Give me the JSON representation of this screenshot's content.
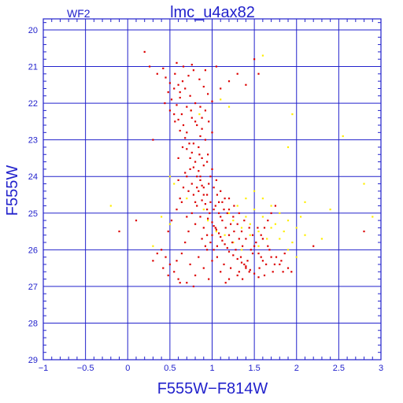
{
  "chart_data": {
    "type": "scatter",
    "title": "lmc_u4ax82",
    "corner_label": "WF2",
    "xlabel": "F555W−F814W",
    "ylabel": "F555W",
    "xlim": [
      -1,
      3
    ],
    "ylim": [
      29,
      19.7
    ],
    "y_inverted": true,
    "grid": true,
    "x_ticks": [
      -1,
      -0.5,
      0,
      0.5,
      1,
      1.5,
      2,
      2.5,
      3
    ],
    "x_tick_labels": [
      "−1",
      "−0.5",
      "0",
      "0.5",
      "1",
      "1.5",
      "2",
      "2.5",
      "3"
    ],
    "y_ticks": [
      20,
      21,
      22,
      23,
      24,
      25,
      26,
      27,
      28,
      29
    ],
    "y_tick_labels": [
      "20",
      "21",
      "22",
      "23",
      "24",
      "25",
      "26",
      "27",
      "28",
      "29"
    ],
    "colors": {
      "frame": "#2222cc",
      "grid": "#2222cc",
      "red": "#dd0000",
      "yellow": "#ffee00"
    },
    "series": [
      {
        "color": "#dd0000",
        "points": [
          [
            0.2,
            20.6
          ],
          [
            0.26,
            21.0
          ],
          [
            0.35,
            21.2
          ],
          [
            0.42,
            21.05
          ],
          [
            0.45,
            21.3
          ],
          [
            0.5,
            21.45
          ],
          [
            0.55,
            21.6
          ],
          [
            0.6,
            21.5
          ],
          [
            0.48,
            21.7
          ],
          [
            0.52,
            21.9
          ],
          [
            0.58,
            22.05
          ],
          [
            0.62,
            21.85
          ],
          [
            0.55,
            22.3
          ],
          [
            0.6,
            22.45
          ],
          [
            0.66,
            22.6
          ],
          [
            0.62,
            22.75
          ],
          [
            0.7,
            22.8
          ],
          [
            0.68,
            22.95
          ],
          [
            0.73,
            23.1
          ],
          [
            0.7,
            23.25
          ],
          [
            0.76,
            23.35
          ],
          [
            0.74,
            23.5
          ],
          [
            0.8,
            23.6
          ],
          [
            0.78,
            23.75
          ],
          [
            0.84,
            23.85
          ],
          [
            0.82,
            24.0
          ],
          [
            0.86,
            24.1
          ],
          [
            0.88,
            24.25
          ],
          [
            0.84,
            24.4
          ],
          [
            0.9,
            24.5
          ],
          [
            0.88,
            24.65
          ],
          [
            0.92,
            24.75
          ],
          [
            0.94,
            24.9
          ],
          [
            0.97,
            25.0
          ],
          [
            0.95,
            25.15
          ],
          [
            1.0,
            25.25
          ],
          [
            1.02,
            25.35
          ],
          [
            1.05,
            25.45
          ],
          [
            1.08,
            25.55
          ],
          [
            1.1,
            25.65
          ],
          [
            1.12,
            25.75
          ],
          [
            1.15,
            25.85
          ],
          [
            1.18,
            25.95
          ],
          [
            1.2,
            26.05
          ],
          [
            1.25,
            26.15
          ],
          [
            1.3,
            26.25
          ],
          [
            1.35,
            26.35
          ],
          [
            1.4,
            26.45
          ],
          [
            1.45,
            26.55
          ],
          [
            1.5,
            26.65
          ],
          [
            1.55,
            26.75
          ],
          [
            0.65,
            21.4
          ],
          [
            0.72,
            21.25
          ],
          [
            0.78,
            21.1
          ],
          [
            0.85,
            21.35
          ],
          [
            0.9,
            21.55
          ],
          [
            0.95,
            21.75
          ],
          [
            1.0,
            21.95
          ],
          [
            0.75,
            22.2
          ],
          [
            0.8,
            22.5
          ],
          [
            0.88,
            22.7
          ],
          [
            0.92,
            23.0
          ],
          [
            0.95,
            23.4
          ],
          [
            1.0,
            23.8
          ],
          [
            1.05,
            24.1
          ],
          [
            1.1,
            24.4
          ],
          [
            1.15,
            24.6
          ],
          [
            1.2,
            24.9
          ],
          [
            1.25,
            25.1
          ],
          [
            1.3,
            25.3
          ],
          [
            1.35,
            25.5
          ],
          [
            1.4,
            25.7
          ],
          [
            1.5,
            25.9
          ],
          [
            1.55,
            26.1
          ],
          [
            1.6,
            26.3
          ],
          [
            1.7,
            26.2
          ],
          [
            1.8,
            26.4
          ],
          [
            1.9,
            26.5
          ],
          [
            0.4,
            26.0
          ],
          [
            0.45,
            26.2
          ],
          [
            0.5,
            26.4
          ],
          [
            0.55,
            26.6
          ],
          [
            0.6,
            26.8
          ],
          [
            0.7,
            26.9
          ],
          [
            0.8,
            26.7
          ],
          [
            0.9,
            26.5
          ],
          [
            1.0,
            26.3
          ],
          [
            1.1,
            26.6
          ],
          [
            1.2,
            26.8
          ],
          [
            1.3,
            26.7
          ],
          [
            1.4,
            26.5
          ],
          [
            0.35,
            26.1
          ],
          [
            0.48,
            25.5
          ],
          [
            0.52,
            25.2
          ],
          [
            0.58,
            24.9
          ],
          [
            0.62,
            24.6
          ],
          [
            0.66,
            24.3
          ],
          [
            0.7,
            24.0
          ],
          [
            0.74,
            23.8
          ],
          [
            0.76,
            24.2
          ],
          [
            0.78,
            24.5
          ],
          [
            0.82,
            24.8
          ],
          [
            0.86,
            25.1
          ],
          [
            0.9,
            25.4
          ],
          [
            0.94,
            25.6
          ],
          [
            0.98,
            25.8
          ],
          [
            1.02,
            26.0
          ],
          [
            1.06,
            26.2
          ],
          [
            1.14,
            26.4
          ],
          [
            1.22,
            26.5
          ],
          [
            1.32,
            26.6
          ],
          [
            1.42,
            26.3
          ],
          [
            1.48,
            26.1
          ],
          [
            1.52,
            25.8
          ],
          [
            1.58,
            25.6
          ],
          [
            1.62,
            25.4
          ],
          [
            1.66,
            25.2
          ],
          [
            1.7,
            25.0
          ],
          [
            1.75,
            24.8
          ],
          [
            -0.1,
            25.5
          ],
          [
            0.1,
            25.2
          ],
          [
            2.2,
            25.9
          ],
          [
            2.8,
            25.5
          ],
          [
            1.4,
            21.5
          ],
          [
            1.1,
            21.6
          ],
          [
            0.3,
            23.0
          ],
          [
            1.55,
            21.2
          ],
          [
            0.92,
            22.2
          ],
          [
            0.6,
            23.5
          ],
          [
            0.65,
            23.2
          ],
          [
            0.68,
            23.9
          ],
          [
            0.72,
            24.4
          ],
          [
            0.8,
            24.7
          ],
          [
            0.85,
            23.4
          ],
          [
            0.9,
            23.7
          ],
          [
            0.96,
            24.2
          ],
          [
            1.04,
            24.8
          ],
          [
            1.08,
            25.0
          ],
          [
            1.12,
            25.2
          ],
          [
            1.16,
            25.4
          ],
          [
            1.2,
            25.6
          ],
          [
            1.24,
            25.8
          ],
          [
            1.28,
            26.0
          ],
          [
            1.34,
            26.2
          ],
          [
            1.38,
            26.4
          ],
          [
            1.44,
            26.6
          ],
          [
            1.56,
            26.5
          ],
          [
            1.64,
            26.4
          ],
          [
            1.72,
            26.6
          ],
          [
            1.82,
            26.3
          ],
          [
            1.94,
            26.6
          ],
          [
            0.42,
            26.5
          ],
          [
            0.58,
            26.3
          ],
          [
            0.64,
            26.1
          ],
          [
            0.74,
            26.4
          ],
          [
            0.84,
            26.2
          ],
          [
            0.94,
            26.0
          ],
          [
            1.06,
            25.9
          ],
          [
            0.44,
            22.0
          ],
          [
            0.5,
            22.2
          ],
          [
            0.56,
            22.5
          ],
          [
            0.64,
            22.3
          ],
          [
            0.7,
            22.1
          ],
          [
            0.76,
            22.4
          ],
          [
            0.82,
            22.6
          ],
          [
            0.86,
            22.9
          ],
          [
            0.78,
            23.1
          ],
          [
            0.84,
            23.2
          ],
          [
            0.88,
            23.5
          ],
          [
            0.94,
            23.6
          ],
          [
            0.98,
            24.0
          ],
          [
            1.02,
            24.3
          ],
          [
            1.06,
            24.5
          ],
          [
            1.12,
            24.7
          ],
          [
            1.18,
            25.0
          ],
          [
            1.22,
            25.3
          ],
          [
            1.26,
            25.5
          ],
          [
            1.32,
            25.7
          ],
          [
            1.36,
            25.9
          ],
          [
            1.46,
            26.0
          ],
          [
            1.58,
            26.2
          ],
          [
            1.68,
            26.0
          ],
          [
            1.76,
            26.2
          ],
          [
            1.86,
            26.1
          ],
          [
            0.56,
            21.2
          ],
          [
            0.62,
            21.7
          ],
          [
            0.68,
            21.6
          ],
          [
            0.74,
            21.8
          ],
          [
            0.8,
            22.0
          ],
          [
            0.86,
            22.1
          ],
          [
            0.88,
            22.4
          ],
          [
            0.96,
            22.5
          ],
          [
            1.0,
            22.8
          ],
          [
            0.58,
            20.9
          ],
          [
            0.66,
            21.0
          ],
          [
            0.76,
            20.95
          ],
          [
            0.92,
            21.1
          ],
          [
            1.05,
            21.0
          ],
          [
            1.2,
            21.4
          ],
          [
            1.3,
            21.2
          ],
          [
            1.5,
            20.8
          ],
          [
            0.3,
            26.3
          ],
          [
            0.48,
            26.7
          ],
          [
            0.62,
            26.9
          ],
          [
            0.78,
            27.0
          ],
          [
            0.96,
            26.8
          ],
          [
            1.16,
            26.9
          ],
          [
            1.36,
            26.8
          ],
          [
            1.62,
            26.7
          ],
          [
            0.68,
            25.8
          ],
          [
            0.72,
            25.5
          ],
          [
            0.8,
            25.3
          ],
          [
            0.88,
            25.7
          ],
          [
            0.92,
            25.9
          ],
          [
            1.0,
            25.6
          ],
          [
            1.04,
            25.4
          ],
          [
            1.1,
            25.1
          ],
          [
            1.14,
            24.9
          ],
          [
            1.2,
            24.6
          ],
          [
            1.26,
            24.8
          ],
          [
            1.32,
            25.0
          ],
          [
            1.38,
            25.2
          ],
          [
            1.44,
            25.4
          ],
          [
            1.48,
            25.6
          ],
          [
            1.54,
            25.4
          ],
          [
            1.6,
            25.7
          ],
          [
            1.66,
            25.9
          ],
          [
            1.74,
            26.4
          ],
          [
            1.84,
            26.6
          ],
          [
            0.6,
            24.1
          ],
          [
            0.64,
            24.7
          ],
          [
            0.7,
            25.1
          ],
          [
            0.76,
            25.0
          ],
          [
            0.82,
            24.3
          ],
          [
            0.86,
            24.0
          ],
          [
            0.9,
            24.3
          ],
          [
            0.94,
            24.5
          ],
          [
            0.98,
            24.7
          ],
          [
            1.02,
            24.9
          ],
          [
            1.08,
            24.7
          ]
        ]
      },
      {
        "color": "#ffee00",
        "points": [
          [
            1.6,
            20.7
          ],
          [
            2.55,
            22.9
          ],
          [
            2.8,
            24.2
          ],
          [
            1.9,
            23.2
          ],
          [
            1.5,
            24.4
          ],
          [
            1.6,
            24.6
          ],
          [
            1.7,
            24.8
          ],
          [
            1.8,
            25.0
          ],
          [
            1.9,
            25.2
          ],
          [
            2.0,
            25.4
          ],
          [
            2.1,
            25.6
          ],
          [
            1.4,
            25.1
          ],
          [
            1.45,
            25.3
          ],
          [
            1.55,
            25.5
          ],
          [
            1.65,
            25.7
          ],
          [
            1.75,
            25.3
          ],
          [
            1.85,
            25.5
          ],
          [
            1.95,
            25.8
          ],
          [
            2.05,
            25.1
          ],
          [
            0.5,
            24.0
          ],
          [
            0.55,
            24.2
          ],
          [
            0.4,
            25.1
          ],
          [
            0.5,
            25.3
          ],
          [
            0.3,
            25.9
          ],
          [
            -0.2,
            24.8
          ],
          [
            1.35,
            25.4
          ],
          [
            1.25,
            25.2
          ],
          [
            1.3,
            24.8
          ],
          [
            1.2,
            25.0
          ],
          [
            1.4,
            24.6
          ],
          [
            1.5,
            24.9
          ],
          [
            1.6,
            25.1
          ],
          [
            1.7,
            25.4
          ],
          [
            1.8,
            25.7
          ],
          [
            1.9,
            26.0
          ],
          [
            2.0,
            26.2
          ],
          [
            2.3,
            25.7
          ],
          [
            2.4,
            24.9
          ],
          [
            2.9,
            25.1
          ],
          [
            2.1,
            24.7
          ],
          [
            1.55,
            25.9
          ],
          [
            1.45,
            25.6
          ],
          [
            1.35,
            26.0
          ],
          [
            1.25,
            25.8
          ],
          [
            1.15,
            25.6
          ],
          [
            1.05,
            25.5
          ],
          [
            0.95,
            25.2
          ],
          [
            0.9,
            24.9
          ],
          [
            0.7,
            24.6
          ],
          [
            0.75,
            22.2
          ],
          [
            1.95,
            22.3
          ],
          [
            1.1,
            21.9
          ],
          [
            1.2,
            22.1
          ],
          [
            0.85,
            22.3
          ]
        ]
      }
    ]
  }
}
